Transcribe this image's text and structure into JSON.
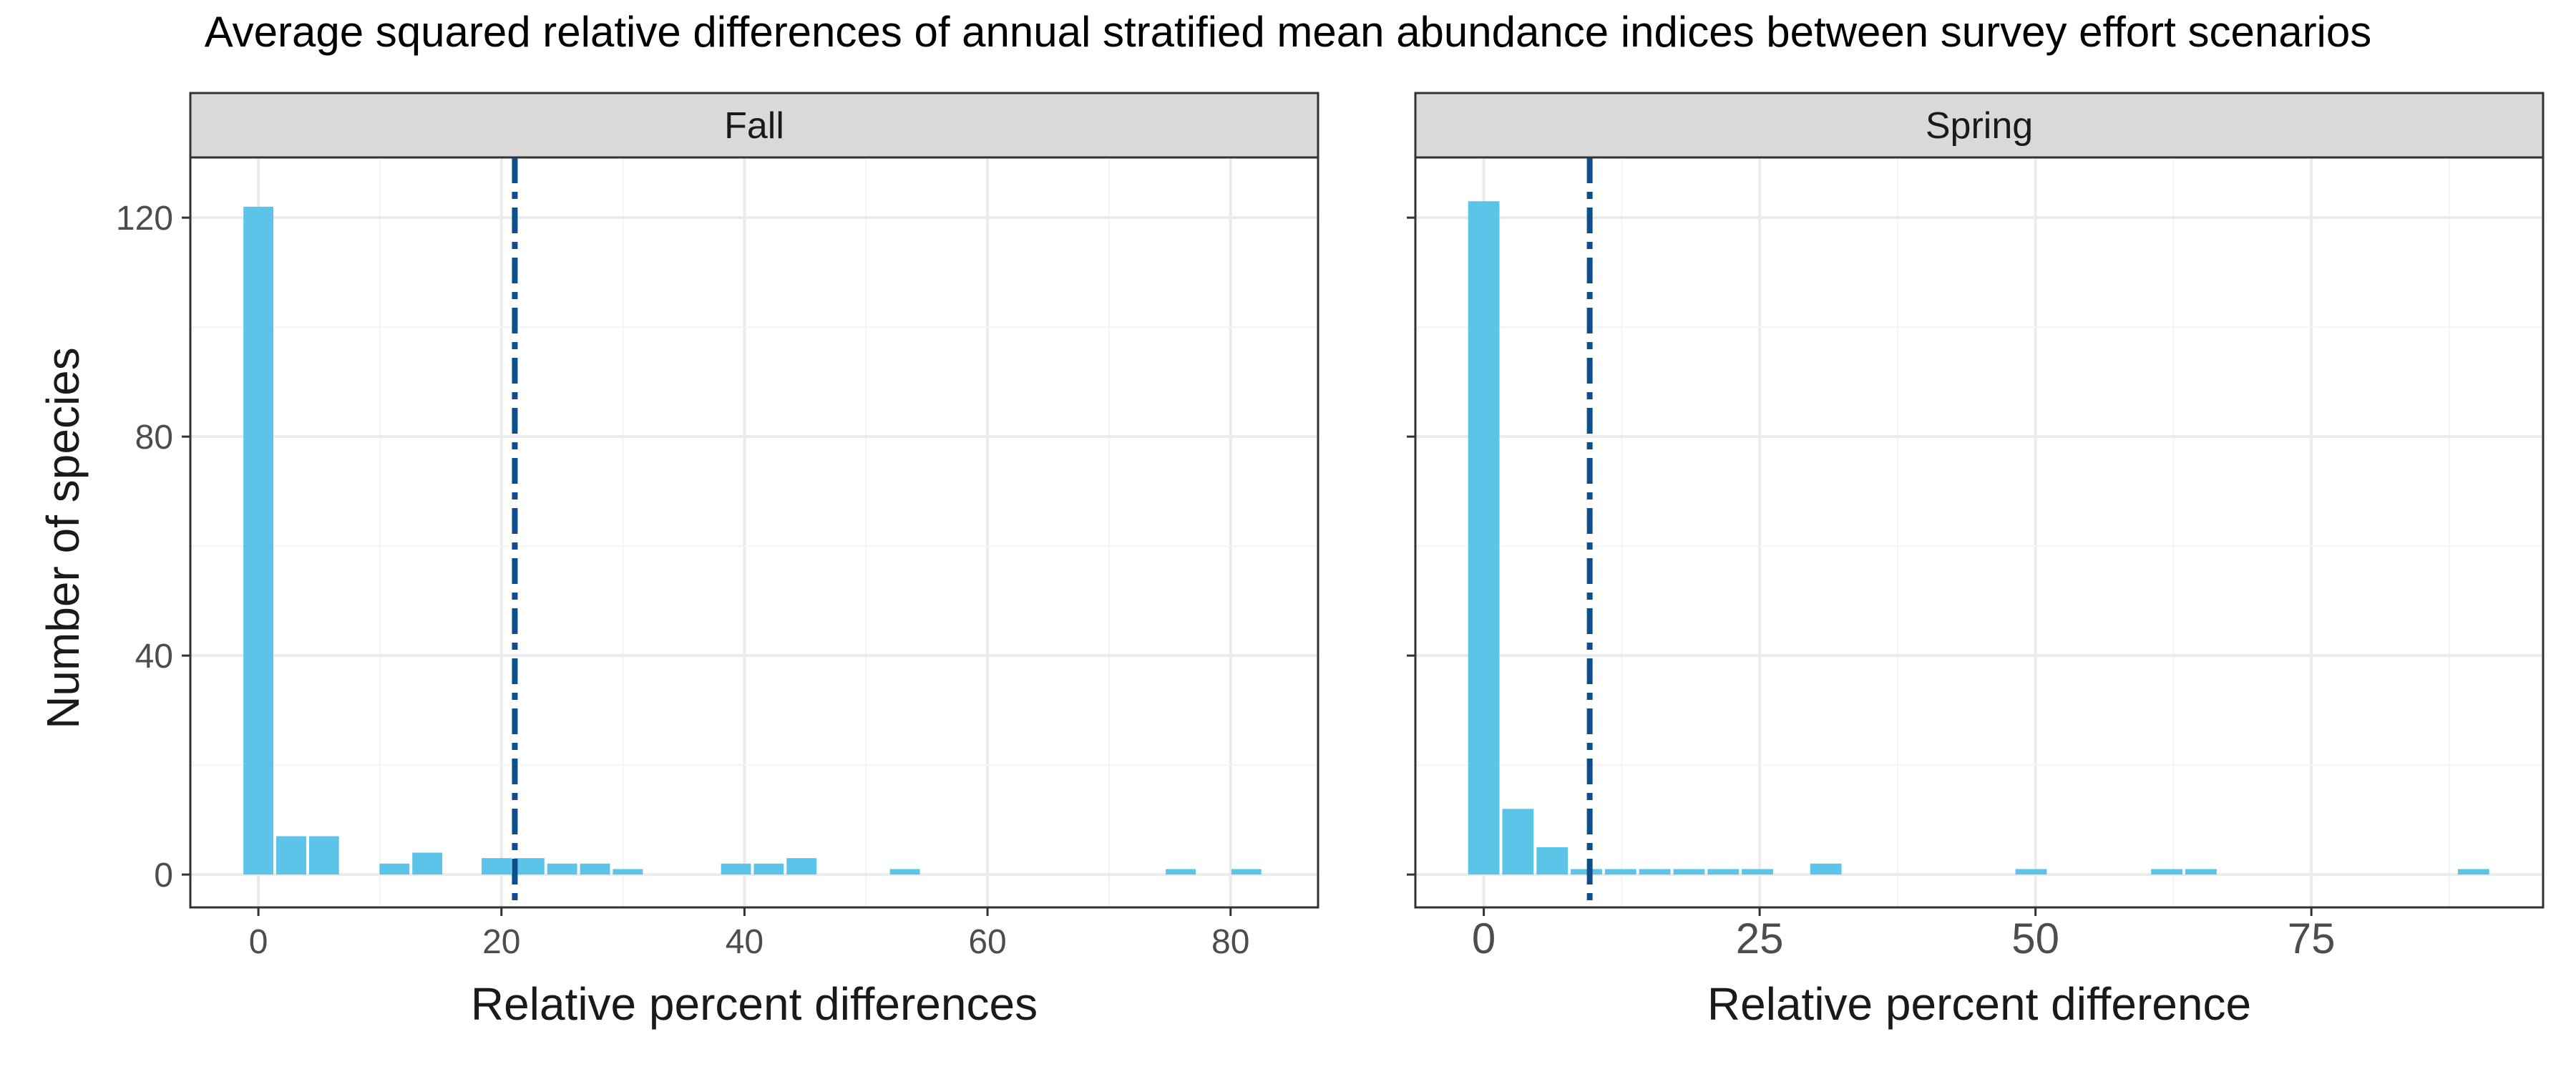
{
  "title": "Average squared relative differences of annual stratified mean abundance indices between survey effort scenarios",
  "ylabel": "Number of species",
  "colors": {
    "bar": "#5BC4E8",
    "mean_line": "#0D4F8B",
    "strip_fill": "#D9D9D9",
    "grid_major": "#EBEBEB",
    "grid_minor": "#F4F4F4",
    "panel_border": "#333333",
    "tick_text": "#4D4D4D",
    "axis_title_text": "#1A1A1A"
  },
  "chart_data": [
    {
      "type": "bar",
      "panel": "Fall",
      "xlabel": "Relative percent differences",
      "xlim": [
        -5.6,
        87.2
      ],
      "ylim": [
        -6,
        131
      ],
      "x_ticks": [
        0,
        20,
        40,
        60,
        80
      ],
      "y_ticks": [
        0,
        40,
        80,
        120
      ],
      "bin_width": 2.7,
      "bins": [
        {
          "x": 0.0,
          "count": 122
        },
        {
          "x": 2.7,
          "count": 7
        },
        {
          "x": 5.4,
          "count": 7
        },
        {
          "x": 11.2,
          "count": 2
        },
        {
          "x": 13.9,
          "count": 4
        },
        {
          "x": 19.6,
          "count": 3
        },
        {
          "x": 22.3,
          "count": 3
        },
        {
          "x": 25.0,
          "count": 2
        },
        {
          "x": 27.7,
          "count": 2
        },
        {
          "x": 30.4,
          "count": 1
        },
        {
          "x": 39.3,
          "count": 2
        },
        {
          "x": 42.0,
          "count": 2
        },
        {
          "x": 44.7,
          "count": 3
        },
        {
          "x": 53.2,
          "count": 1
        },
        {
          "x": 75.9,
          "count": 1
        },
        {
          "x": 81.3,
          "count": 1
        }
      ],
      "mean_line_x": 21.1
    },
    {
      "type": "bar",
      "panel": "Spring",
      "xlabel": "Relative percent difference",
      "xlim": [
        -6.2,
        96.0
      ],
      "ylim": [
        -6,
        131
      ],
      "x_ticks": [
        0,
        25,
        50,
        75
      ],
      "y_ticks": [
        0,
        40,
        80,
        120
      ],
      "bin_width": 3.1,
      "bins": [
        {
          "x": 0.0,
          "count": 123
        },
        {
          "x": 3.1,
          "count": 12
        },
        {
          "x": 6.2,
          "count": 5
        },
        {
          "x": 9.3,
          "count": 1
        },
        {
          "x": 12.4,
          "count": 1
        },
        {
          "x": 15.5,
          "count": 1
        },
        {
          "x": 18.6,
          "count": 1
        },
        {
          "x": 21.7,
          "count": 1
        },
        {
          "x": 24.8,
          "count": 1
        },
        {
          "x": 31.0,
          "count": 2
        },
        {
          "x": 49.6,
          "count": 1
        },
        {
          "x": 61.9,
          "count": 1
        },
        {
          "x": 65.0,
          "count": 1
        },
        {
          "x": 89.7,
          "count": 1
        }
      ],
      "mean_line_x": 9.6
    }
  ]
}
